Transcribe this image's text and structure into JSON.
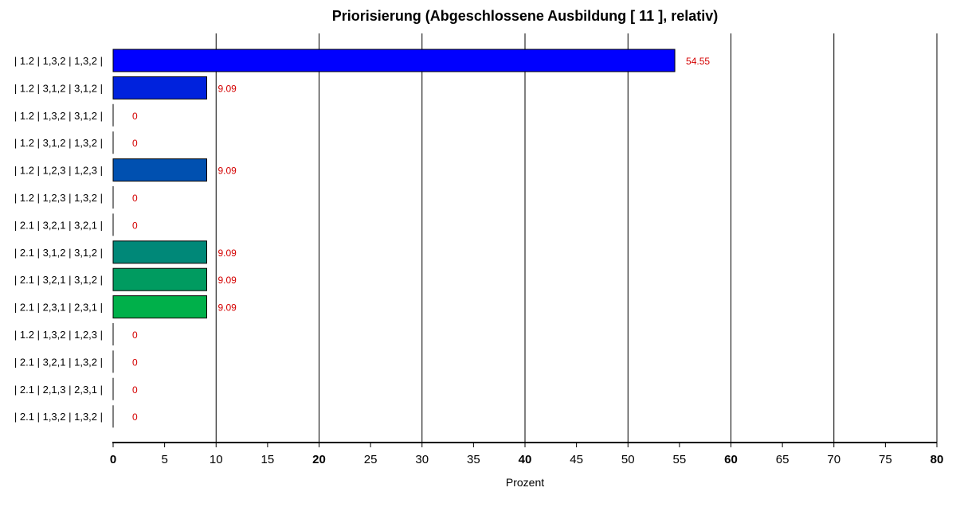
{
  "chart_data": {
    "type": "bar",
    "orientation": "horizontal",
    "title": "Priorisierung (Abgeschlossene Ausbildung [ 11 ], relativ)",
    "xlabel": "Prozent",
    "ylabel": "",
    "xlim": [
      0,
      80
    ],
    "x_ticks": [
      0,
      5,
      10,
      15,
      20,
      25,
      30,
      35,
      40,
      45,
      50,
      55,
      60,
      65,
      70,
      75,
      80
    ],
    "x_gridlines": [
      10,
      20,
      30,
      40,
      50,
      60,
      70,
      80
    ],
    "grid": true,
    "categories": [
      "| 1.2 | 1,3,2 | 1,3,2 |",
      "| 1.2 | 3,1,2 | 3,1,2 |",
      "| 1.2 | 1,3,2 | 3,1,2 |",
      "| 1.2 | 3,1,2 | 1,3,2 |",
      "| 1.2 | 1,2,3 | 1,2,3 |",
      "| 1.2 | 1,2,3 | 1,3,2 |",
      "| 2.1 | 3,2,1 | 3,2,1 |",
      "| 2.1 | 3,1,2 | 3,1,2 |",
      "| 2.1 | 3,2,1 | 3,1,2 |",
      "| 2.1 | 2,3,1 | 2,3,1 |",
      "| 1.2 | 1,3,2 | 1,2,3 |",
      "| 2.1 | 3,2,1 | 1,3,2 |",
      "| 2.1 | 2,1,3 | 2,3,1 |",
      "| 2.1 | 1,3,2 | 1,3,2 |"
    ],
    "values": [
      54.55,
      9.09,
      0,
      0,
      9.09,
      0,
      0,
      9.09,
      9.09,
      9.09,
      0,
      0,
      0,
      0
    ],
    "value_labels": [
      "54.55",
      "9.09",
      "0",
      "0",
      "9.09",
      "0",
      "0",
      "9.09",
      "9.09",
      "9.09",
      "0",
      "0",
      "0",
      "0"
    ],
    "bar_colors": [
      "#0000ff",
      "#0022dd",
      "#0033cc",
      "#0044bb",
      "#0050b0",
      "#005aa0",
      "#006f90",
      "#008878",
      "#009b60",
      "#00b04a",
      "#00b040",
      "#00b040",
      "#00b040",
      "#00b040"
    ],
    "value_label_color": "#d40000",
    "legend": "none"
  }
}
